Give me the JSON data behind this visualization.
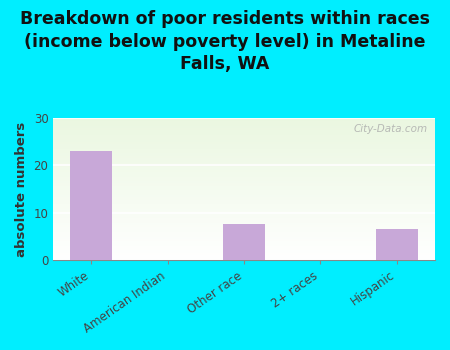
{
  "title": "Breakdown of poor residents within races\n(income below poverty level) in Metaline\nFalls, WA",
  "categories": [
    "White",
    "American Indian",
    "Other race",
    "2+ races",
    "Hispanic"
  ],
  "values": [
    23,
    0,
    7.5,
    0,
    6.5
  ],
  "bar_color": "#c8a8d8",
  "ylabel": "absolute numbers",
  "ylim": [
    0,
    30
  ],
  "yticks": [
    0,
    10,
    20,
    30
  ],
  "bg_color": "#00eeff",
  "watermark": "City-Data.com",
  "title_fontsize": 12.5,
  "ylabel_fontsize": 9.5,
  "tick_fontsize": 8.5,
  "title_color": "#111111"
}
